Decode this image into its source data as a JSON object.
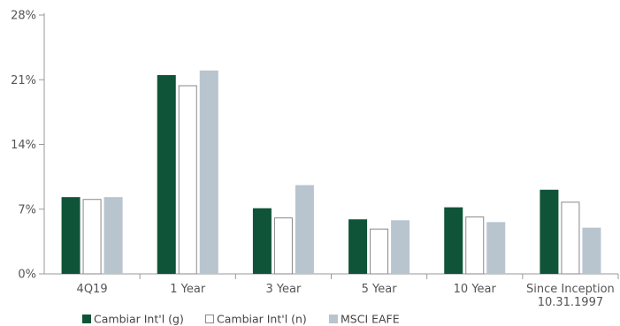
{
  "chart_data": {
    "type": "bar",
    "categories": [
      [
        "4Q19"
      ],
      [
        "1 Year"
      ],
      [
        "3 Year"
      ],
      [
        "5 Year"
      ],
      [
        "10 Year"
      ],
      [
        "Since Inception",
        "10.31.1997"
      ]
    ],
    "series": [
      {
        "name": "Cambiar Int'l (g)",
        "values": [
          8.3,
          21.5,
          7.1,
          5.9,
          7.2,
          9.1
        ],
        "color": "#0f5438",
        "fill": "solid"
      },
      {
        "name": "Cambiar Int'l (n)",
        "values": [
          8.1,
          20.4,
          6.1,
          4.9,
          6.2,
          7.8
        ],
        "color": "#ffffff",
        "stroke": "#888888",
        "fill": "outline"
      },
      {
        "name": "MSCI EAFE",
        "values": [
          8.3,
          22.0,
          9.6,
          5.8,
          5.6,
          5.0
        ],
        "color": "#b8c4ce",
        "fill": "solid"
      }
    ],
    "yticks": [
      "0%",
      "7%",
      "14%",
      "21%",
      "28%"
    ],
    "ytick_values": [
      0,
      7,
      14,
      21,
      28
    ],
    "ylim": [
      0,
      28
    ],
    "title": "",
    "xlabel": "",
    "ylabel": "",
    "grid": false,
    "legend_position": "bottom-left"
  }
}
